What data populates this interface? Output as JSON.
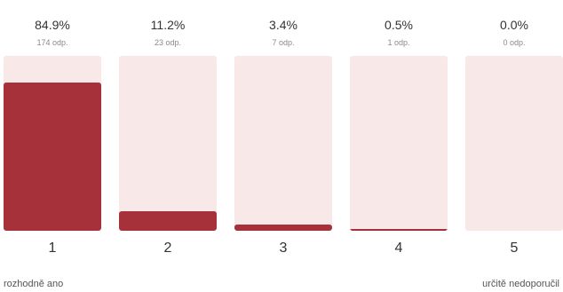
{
  "scale": {
    "fill_color": "#a6313a",
    "track_color": "#f8e8e8",
    "options": [
      {
        "label": "1",
        "percent": "84.9%",
        "responses": "174 odp.",
        "share": 0.849
      },
      {
        "label": "2",
        "percent": "11.2%",
        "responses": "23 odp.",
        "share": 0.112
      },
      {
        "label": "3",
        "percent": "3.4%",
        "responses": "7 odp.",
        "share": 0.034
      },
      {
        "label": "4",
        "percent": "0.5%",
        "responses": "1 odp.",
        "share": 0.005
      },
      {
        "label": "5",
        "percent": "0.0%",
        "responses": "0 odp.",
        "share": 0.0
      }
    ],
    "min_label": "rozhodně ano",
    "max_label": "určitě nedoporučil"
  }
}
